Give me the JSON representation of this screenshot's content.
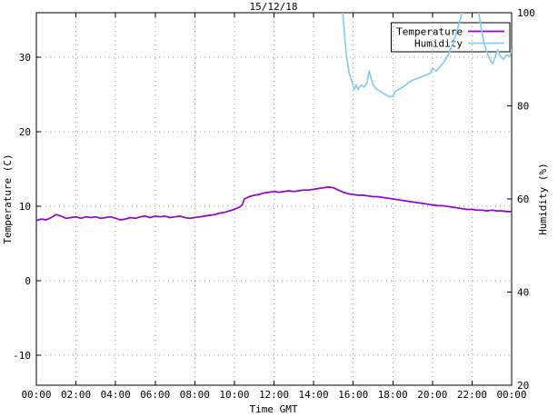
{
  "chart_data": {
    "type": "line",
    "title": "15/12/18",
    "x_axis": {
      "label": "Time GMT",
      "range": [
        0,
        24
      ],
      "tick_values": [
        0,
        2,
        4,
        6,
        8,
        10,
        12,
        14,
        16,
        18,
        20,
        22,
        24
      ],
      "tick_labels": [
        "00:00",
        "02:00",
        "04:00",
        "06:00",
        "08:00",
        "10:00",
        "12:00",
        "14:00",
        "16:00",
        "18:00",
        "20:00",
        "22:00",
        "00:00"
      ]
    },
    "y_left": {
      "label": "Temperature (C)",
      "range": [
        -14,
        36
      ],
      "tick_values": [
        -10,
        0,
        10,
        20,
        30
      ],
      "tick_labels": [
        "-10",
        "0",
        "10",
        "20",
        "30"
      ]
    },
    "y_right": {
      "label": "Humidity (%)",
      "range": [
        20,
        100
      ],
      "tick_values": [
        20,
        40,
        60,
        80,
        100
      ],
      "tick_labels": [
        "20",
        "40",
        "60",
        "80",
        "100"
      ]
    },
    "grid": true,
    "colors": {
      "temperature": "#9400d3",
      "humidity": "#87ceeb",
      "grid": "#9a9a9a",
      "border": "#000000"
    },
    "legend": {
      "position": "top-right",
      "entries": [
        {
          "label": "Temperature",
          "color": "#9400d3"
        },
        {
          "label": "Humidity",
          "color": "#87ceeb"
        }
      ]
    },
    "series": [
      {
        "name": "Temperature",
        "axis": "left",
        "color": "#9400d3",
        "points": [
          [
            0,
            8.1
          ],
          [
            0.25,
            8.3
          ],
          [
            0.5,
            8.2
          ],
          [
            0.75,
            8.5
          ],
          [
            1,
            8.9
          ],
          [
            1.25,
            8.7
          ],
          [
            1.5,
            8.4
          ],
          [
            1.75,
            8.5
          ],
          [
            2,
            8.6
          ],
          [
            2.25,
            8.4
          ],
          [
            2.5,
            8.6
          ],
          [
            2.75,
            8.5
          ],
          [
            3,
            8.6
          ],
          [
            3.25,
            8.4
          ],
          [
            3.5,
            8.5
          ],
          [
            3.75,
            8.6
          ],
          [
            4,
            8.4
          ],
          [
            4.25,
            8.2
          ],
          [
            4.5,
            8.3
          ],
          [
            4.75,
            8.5
          ],
          [
            5,
            8.4
          ],
          [
            5.25,
            8.6
          ],
          [
            5.5,
            8.7
          ],
          [
            5.75,
            8.5
          ],
          [
            6,
            8.7
          ],
          [
            6.25,
            8.6
          ],
          [
            6.5,
            8.7
          ],
          [
            6.75,
            8.5
          ],
          [
            7,
            8.6
          ],
          [
            7.25,
            8.7
          ],
          [
            7.5,
            8.5
          ],
          [
            7.75,
            8.4
          ],
          [
            8,
            8.5
          ],
          [
            8.25,
            8.6
          ],
          [
            8.5,
            8.7
          ],
          [
            8.75,
            8.8
          ],
          [
            9,
            8.9
          ],
          [
            9.25,
            9.1
          ],
          [
            9.5,
            9.2
          ],
          [
            9.75,
            9.4
          ],
          [
            10,
            9.6
          ],
          [
            10.25,
            9.9
          ],
          [
            10.4,
            10.2
          ],
          [
            10.5,
            11.0
          ],
          [
            10.75,
            11.3
          ],
          [
            11,
            11.5
          ],
          [
            11.25,
            11.6
          ],
          [
            11.5,
            11.8
          ],
          [
            11.75,
            11.9
          ],
          [
            12,
            12.0
          ],
          [
            12.25,
            11.9
          ],
          [
            12.5,
            12.0
          ],
          [
            12.75,
            12.1
          ],
          [
            13,
            12.0
          ],
          [
            13.25,
            12.1
          ],
          [
            13.5,
            12.2
          ],
          [
            13.75,
            12.2
          ],
          [
            14,
            12.3
          ],
          [
            14.25,
            12.4
          ],
          [
            14.5,
            12.5
          ],
          [
            14.75,
            12.6
          ],
          [
            15,
            12.5
          ],
          [
            15.25,
            12.2
          ],
          [
            15.5,
            11.9
          ],
          [
            15.75,
            11.7
          ],
          [
            16,
            11.6
          ],
          [
            16.25,
            11.5
          ],
          [
            16.5,
            11.5
          ],
          [
            16.75,
            11.4
          ],
          [
            17,
            11.3
          ],
          [
            17.25,
            11.3
          ],
          [
            17.5,
            11.2
          ],
          [
            17.75,
            11.1
          ],
          [
            18,
            11.0
          ],
          [
            18.25,
            10.9
          ],
          [
            18.5,
            10.8
          ],
          [
            18.75,
            10.7
          ],
          [
            19,
            10.6
          ],
          [
            19.25,
            10.5
          ],
          [
            19.5,
            10.4
          ],
          [
            19.75,
            10.3
          ],
          [
            20,
            10.2
          ],
          [
            20.25,
            10.1
          ],
          [
            20.5,
            10.1
          ],
          [
            20.75,
            10.0
          ],
          [
            21,
            9.9
          ],
          [
            21.25,
            9.8
          ],
          [
            21.5,
            9.7
          ],
          [
            21.75,
            9.6
          ],
          [
            22,
            9.6
          ],
          [
            22.25,
            9.5
          ],
          [
            22.5,
            9.5
          ],
          [
            22.75,
            9.4
          ],
          [
            23,
            9.5
          ],
          [
            23.25,
            9.4
          ],
          [
            23.5,
            9.4
          ],
          [
            23.75,
            9.3
          ],
          [
            24,
            9.3
          ]
        ]
      },
      {
        "name": "Humidity",
        "axis": "right",
        "color": "#87ceeb",
        "points": [
          [
            15.45,
            101
          ],
          [
            15.55,
            96
          ],
          [
            15.65,
            91
          ],
          [
            15.8,
            87
          ],
          [
            15.95,
            85
          ],
          [
            16.05,
            83.5
          ],
          [
            16.15,
            84.5
          ],
          [
            16.25,
            83.5
          ],
          [
            16.4,
            84.5
          ],
          [
            16.55,
            84
          ],
          [
            16.7,
            85
          ],
          [
            16.8,
            87.5
          ],
          [
            16.9,
            86
          ],
          [
            17,
            84.5
          ],
          [
            17.2,
            83.5
          ],
          [
            17.4,
            83
          ],
          [
            17.6,
            82.5
          ],
          [
            17.8,
            82
          ],
          [
            18,
            82
          ],
          [
            18.1,
            83
          ],
          [
            18.3,
            83.5
          ],
          [
            18.5,
            84
          ],
          [
            18.8,
            85
          ],
          [
            19,
            85.5
          ],
          [
            19.3,
            86
          ],
          [
            19.6,
            86.5
          ],
          [
            19.9,
            87
          ],
          [
            20,
            88
          ],
          [
            20.2,
            87.5
          ],
          [
            20.4,
            88.5
          ],
          [
            20.6,
            89.5
          ],
          [
            20.8,
            91
          ],
          [
            21,
            93
          ],
          [
            21.2,
            95.5
          ],
          [
            21.4,
            98.5
          ],
          [
            21.55,
            101
          ],
          [
            22.3,
            101
          ],
          [
            22.45,
            97
          ],
          [
            22.6,
            93.5
          ],
          [
            22.75,
            91.5
          ],
          [
            22.9,
            90
          ],
          [
            23.05,
            89
          ],
          [
            23.15,
            90.5
          ],
          [
            23.3,
            92
          ],
          [
            23.45,
            90.5
          ],
          [
            23.6,
            90
          ],
          [
            23.75,
            91
          ],
          [
            23.9,
            90.5
          ],
          [
            24,
            92
          ]
        ]
      }
    ]
  }
}
